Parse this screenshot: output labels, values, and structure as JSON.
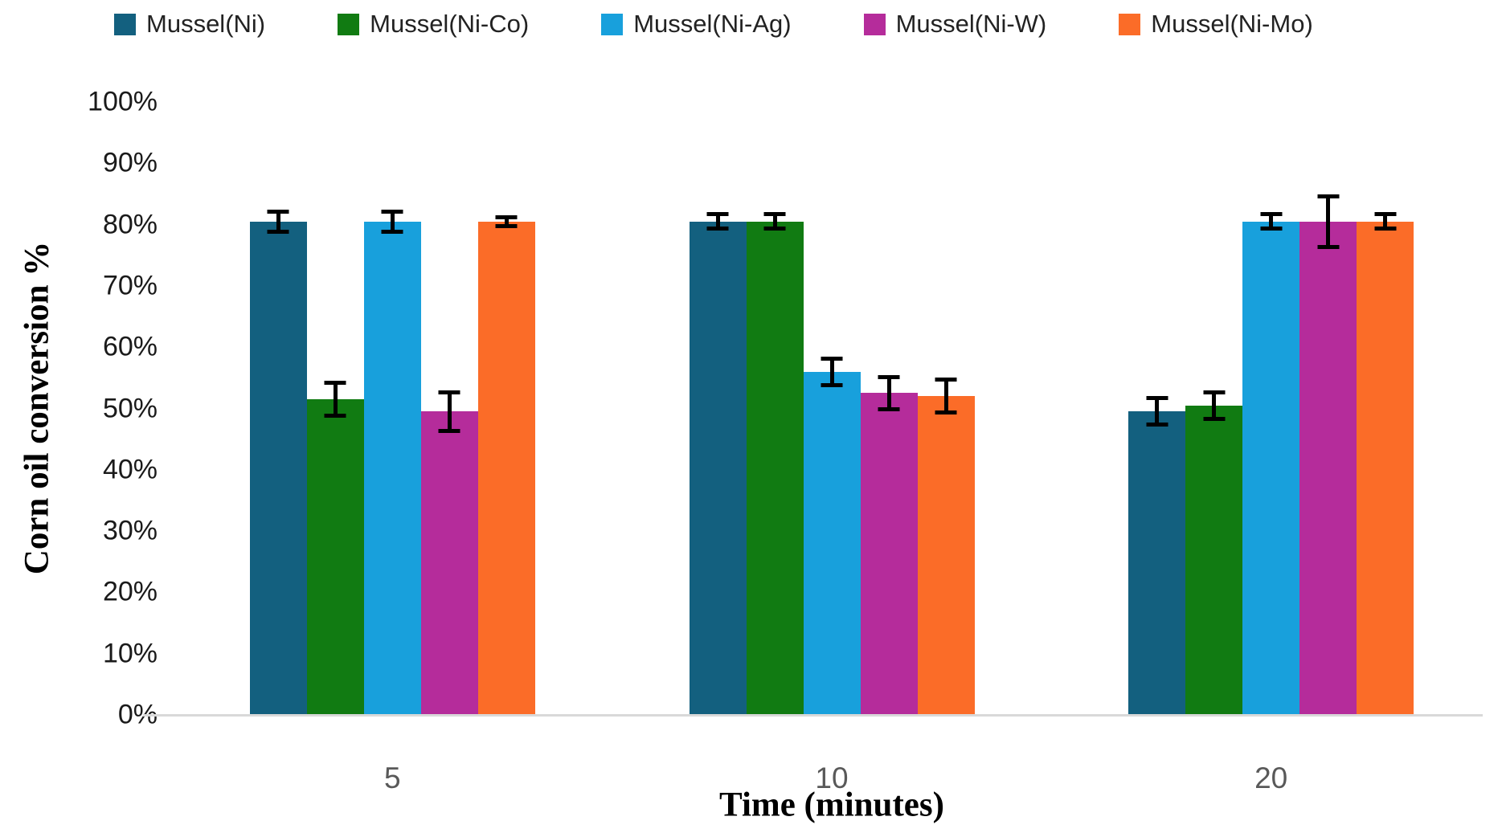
{
  "chart_data": {
    "type": "bar",
    "title": "",
    "xlabel": "Time (minutes)",
    "ylabel": "Corn oil conversion %",
    "categories": [
      "5",
      "10",
      "20"
    ],
    "y_ticks": [
      "0%",
      "10%",
      "20%",
      "30%",
      "40%",
      "50%",
      "60%",
      "70%",
      "80%",
      "90%",
      "100%"
    ],
    "ylim": [
      0,
      100
    ],
    "grid": false,
    "legend_position": "top",
    "axis_line_color": "#d9d9d9",
    "error_bar_color": "#000000",
    "series": [
      {
        "name": "Mussel(Ni)",
        "color": "#13607F",
        "values": [
          80.5,
          80.5,
          49.5
        ],
        "errors": [
          2.0,
          1.5,
          2.5
        ]
      },
      {
        "name": "Mussel(Ni-Co)",
        "color": "#117B12",
        "values": [
          51.5,
          80.5,
          50.5
        ],
        "errors": [
          3.0,
          1.5,
          2.5
        ]
      },
      {
        "name": "Mussel(Ni-Ag)",
        "color": "#18A0DC",
        "values": [
          80.5,
          56.0,
          80.5
        ],
        "errors": [
          2.0,
          2.5,
          1.5
        ]
      },
      {
        "name": "Mussel(Ni-W)",
        "color": "#B52C9B",
        "values": [
          49.5,
          52.5,
          80.5
        ],
        "errors": [
          3.5,
          3.0,
          4.5
        ]
      },
      {
        "name": "Mussel(Ni-Mo)",
        "color": "#FB6C28",
        "values": [
          80.5,
          52.0,
          80.5
        ],
        "errors": [
          1.0,
          3.0,
          1.5
        ]
      }
    ]
  }
}
